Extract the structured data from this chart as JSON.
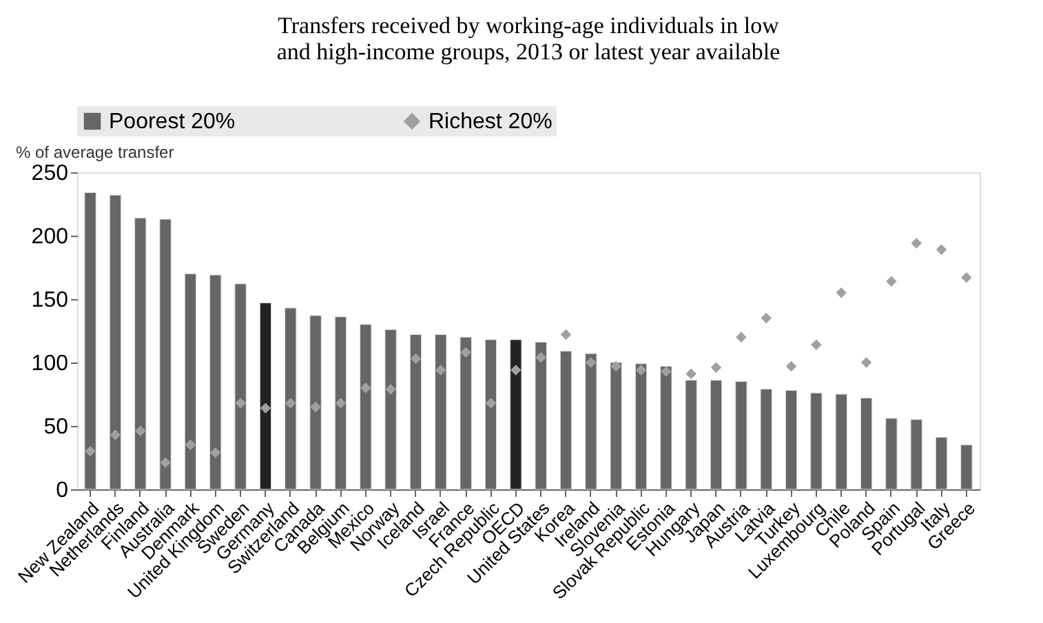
{
  "chart_data": {
    "type": "bar",
    "title": "Transfers received by working-age individuals in low and high-income groups, 2013 or latest year available",
    "ylabel": "% of average transfer",
    "categories": [
      "New Zealand",
      "Netherlands",
      "Finland",
      "Australia",
      "Denmark",
      "United Kingdom",
      "Sweden",
      "Germany",
      "Switzerland",
      "Canada",
      "Belgium",
      "Mexico",
      "Norway",
      "Iceland",
      "Israel",
      "France",
      "Czech Republic",
      "OECD",
      "United States",
      "Korea",
      "Ireland",
      "Slovenia",
      "Slovak Republic",
      "Estonia",
      "Hungary",
      "Japan",
      "Austria",
      "Latvia",
      "Turkey",
      "Luxembourg",
      "Chile",
      "Poland",
      "Spain",
      "Portugal",
      "Italy",
      "Greece"
    ],
    "series": [
      {
        "name": "Poorest 20%",
        "color": "#666666",
        "colors": [
          "#666666",
          "#666666",
          "#666666",
          "#666666",
          "#666666",
          "#666666",
          "#666666",
          "#222222",
          "#666666",
          "#666666",
          "#666666",
          "#666666",
          "#666666",
          "#666666",
          "#666666",
          "#666666",
          "#666666",
          "#222222",
          "#666666",
          "#666666",
          "#666666",
          "#666666",
          "#666666",
          "#666666",
          "#666666",
          "#666666",
          "#666666",
          "#666666",
          "#666666",
          "#666666",
          "#666666",
          "#666666",
          "#666666",
          "#666666",
          "#666666",
          "#666666"
        ],
        "values": [
          234,
          232,
          214,
          213,
          170,
          169,
          162,
          147,
          143,
          137,
          136,
          130,
          126,
          122,
          122,
          120,
          118,
          118,
          116,
          109,
          107,
          100,
          99,
          97,
          86,
          86,
          85,
          79,
          78,
          76,
          75,
          72,
          56,
          55,
          41,
          35
        ]
      },
      {
        "name": "Richest 20%",
        "type": "scatter",
        "marker": "diamond",
        "color": "#a0a0a0",
        "values": [
          30,
          43,
          46,
          21,
          35,
          29,
          68,
          64,
          68,
          65,
          68,
          80,
          79,
          103,
          94,
          108,
          68,
          94,
          104,
          122,
          100,
          97,
          94,
          93,
          91,
          96,
          120,
          135,
          97,
          114,
          155,
          100,
          164,
          194,
          189,
          167
        ]
      }
    ],
    "ylim": [
      0,
      250
    ],
    "yticks": [
      0,
      50,
      100,
      150,
      200,
      250
    ],
    "grid": false,
    "legend": "top"
  }
}
